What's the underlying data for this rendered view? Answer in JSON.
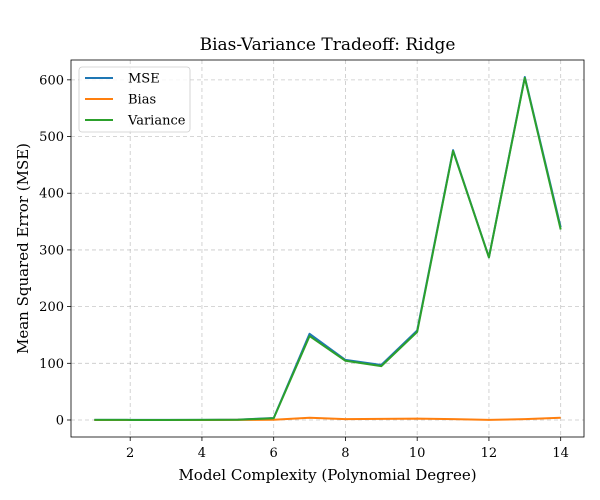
{
  "chart_data": {
    "type": "line",
    "title": "Bias-Variance Tradeoff: Ridge",
    "xlabel": "Model Complexity (Polynomial Degree)",
    "ylabel": "Mean Squared Error (MSE)",
    "xlim": [
      0.35,
      14.65
    ],
    "ylim": [
      -30,
      635
    ],
    "xticks": [
      2,
      4,
      6,
      8,
      10,
      12,
      14
    ],
    "yticks": [
      0,
      100,
      200,
      300,
      400,
      500,
      600
    ],
    "grid": true,
    "legend_position": "top-left",
    "x": [
      1,
      2,
      3,
      4,
      5,
      6,
      7,
      8,
      9,
      10,
      11,
      12,
      13,
      14
    ],
    "series": [
      {
        "name": "MSE",
        "color": "#1f77b4",
        "values": [
          0.3,
          0.2,
          0.2,
          0.3,
          0.6,
          3.5,
          152,
          106,
          97,
          158,
          476,
          287,
          605,
          340
        ]
      },
      {
        "name": "Bias",
        "color": "#ff7f0e",
        "values": [
          0.1,
          0.1,
          0.1,
          0.1,
          0.2,
          0.4,
          4.0,
          1.5,
          2.0,
          2.5,
          1.5,
          0.3,
          1.5,
          4.0
        ]
      },
      {
        "name": "Variance",
        "color": "#2ca02c",
        "values": [
          0.2,
          0.1,
          0.1,
          0.2,
          0.4,
          3.1,
          148,
          104.5,
          95,
          155.5,
          474.5,
          286.7,
          603.5,
          336
        ]
      }
    ]
  }
}
